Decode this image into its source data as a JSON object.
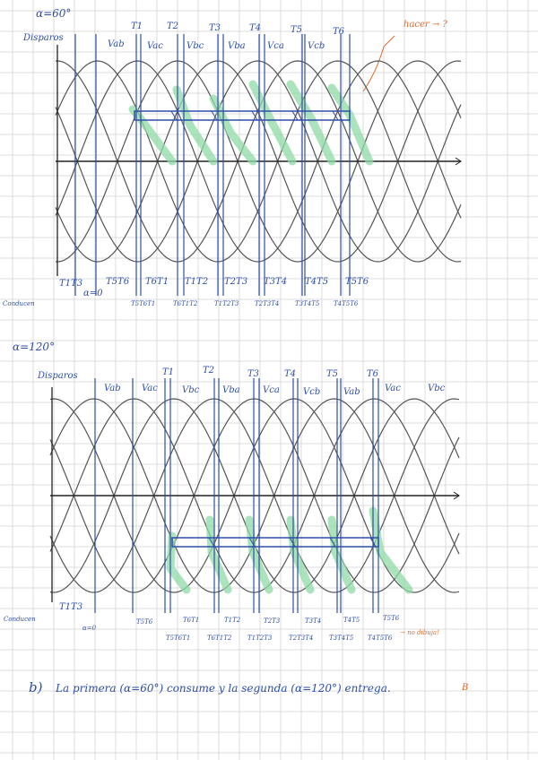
{
  "sections": [
    {
      "alpha_label": "α=60°",
      "disparos_label": "Disparos",
      "top_voltage_labels": [
        "Vab",
        "Vac",
        "Vbc",
        "Vba",
        "Vca",
        "Vcb"
      ],
      "thyristor_labels": [
        "T1",
        "T2",
        "T3",
        "T4",
        "T5",
        "T6"
      ],
      "bottom_pairs": [
        "T1T3",
        "T5T6",
        "T6T1",
        "T1T2",
        "T2T3",
        "T3T4",
        "T4T5",
        "T5T6"
      ],
      "commutation_labels": [
        "T5T6T1",
        "T6T1T2",
        "T1T2T3",
        "T2T3T4",
        "T3T4T5",
        "T4T5T6"
      ],
      "alpha_zero": "α=0",
      "conducen_label": "Conducen",
      "annotation": "hacer → ?"
    },
    {
      "alpha_label": "α=120°",
      "disparos_label": "Disparos",
      "top_voltage_labels": [
        "Vab",
        "Vac",
        "Vbc",
        "Vba",
        "Vca",
        "Vcb",
        "Vab",
        "Vac",
        "Vbc"
      ],
      "thyristor_labels": [
        "T1",
        "T2",
        "T3",
        "T4",
        "T5",
        "T6"
      ],
      "bottom_pairs": [
        "T1T3",
        "T5T6",
        "T6T1",
        "T1T2",
        "T2T3",
        "T3T4",
        "T4T5",
        "T5T6"
      ],
      "commutation_labels": [
        "T5T6T1",
        "T6T1T2",
        "T1T2T3",
        "T2T3T4",
        "T3T4T5",
        "T4T5T6"
      ],
      "alpha_zero": "α=0",
      "conducen_label": "Conducen",
      "annotation": "→ no dibuja!"
    }
  ],
  "answer": {
    "marker": "b)",
    "text": "La primera (α=60°) consume y la segunda (α=120°) entrega.",
    "end_mark": "B"
  },
  "colors": {
    "ink_blue": "#2f4fa8",
    "curve_gray": "#555555",
    "highlight_green": "#8fd9a6",
    "annotation_orange": "#e06a2a",
    "grid_line": "#d3d3d3"
  }
}
